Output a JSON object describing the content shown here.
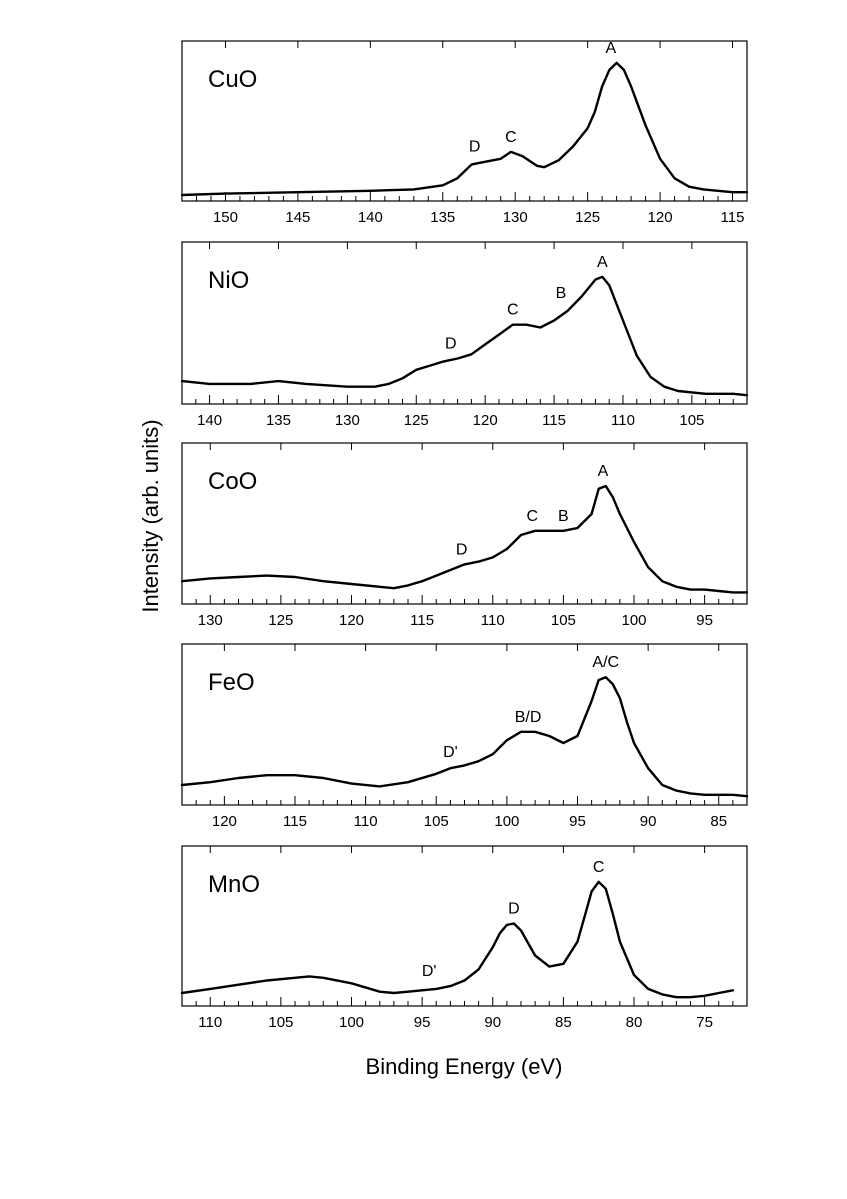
{
  "figure": {
    "xlabel": "Binding Energy (eV)",
    "ylabel": "Intensity (arb. units)"
  },
  "chart_data": [
    {
      "type": "line",
      "name": "CuO",
      "xlim": [
        153,
        114
      ],
      "xticks": [
        150,
        145,
        140,
        135,
        130,
        125,
        120,
        115
      ],
      "ylim": [
        0,
        1.05
      ],
      "x": [
        153,
        150,
        145,
        140,
        137,
        135,
        134,
        133,
        132,
        131,
        130.3,
        129.5,
        128.5,
        128,
        127,
        126,
        125,
        124.5,
        124,
        123.5,
        123,
        122.5,
        122,
        121,
        120,
        119,
        118,
        117,
        116,
        115,
        114
      ],
      "y": [
        0.0,
        0.01,
        0.02,
        0.03,
        0.04,
        0.07,
        0.12,
        0.22,
        0.24,
        0.26,
        0.31,
        0.28,
        0.21,
        0.2,
        0.25,
        0.35,
        0.48,
        0.6,
        0.78,
        0.9,
        0.95,
        0.9,
        0.78,
        0.5,
        0.26,
        0.12,
        0.06,
        0.04,
        0.03,
        0.02,
        0.02
      ],
      "peaks": [
        {
          "label": "D",
          "x": 132.8,
          "y": 0.24
        },
        {
          "label": "C",
          "x": 130.3,
          "y": 0.31
        },
        {
          "label": "A",
          "x": 123.4,
          "y": 0.95
        }
      ]
    },
    {
      "type": "line",
      "name": "NiO",
      "xlim": [
        142,
        101
      ],
      "xticks": [
        140,
        135,
        130,
        125,
        120,
        115,
        110,
        105
      ],
      "ylim": [
        0,
        1.05
      ],
      "x": [
        142,
        140,
        137,
        135,
        133,
        130,
        128,
        127,
        126,
        125,
        124,
        123,
        122,
        121,
        120,
        119,
        118,
        117,
        116,
        115,
        114,
        113,
        112,
        111.5,
        111,
        110,
        109,
        108,
        107,
        106,
        105,
        104,
        103,
        102,
        101
      ],
      "y": [
        0.12,
        0.1,
        0.1,
        0.12,
        0.1,
        0.08,
        0.08,
        0.1,
        0.14,
        0.2,
        0.23,
        0.26,
        0.28,
        0.31,
        0.38,
        0.45,
        0.52,
        0.52,
        0.5,
        0.55,
        0.62,
        0.72,
        0.84,
        0.86,
        0.8,
        0.55,
        0.3,
        0.15,
        0.08,
        0.05,
        0.04,
        0.03,
        0.03,
        0.03,
        0.02
      ],
      "peaks": [
        {
          "label": "D",
          "x": 122.5,
          "y": 0.28
        },
        {
          "label": "C",
          "x": 118,
          "y": 0.52
        },
        {
          "label": "B",
          "x": 114.5,
          "y": 0.64
        },
        {
          "label": "A",
          "x": 111.5,
          "y": 0.86
        }
      ]
    },
    {
      "type": "line",
      "name": "CoO",
      "xlim": [
        132,
        92
      ],
      "xticks": [
        130,
        125,
        120,
        115,
        110,
        105,
        100,
        95
      ],
      "ylim": [
        0,
        1.05
      ],
      "x": [
        132,
        130,
        128,
        126,
        124,
        122,
        120,
        118,
        117,
        116,
        115,
        114,
        113,
        112,
        111,
        110,
        109,
        108,
        107,
        106,
        105,
        104,
        103,
        102.5,
        102,
        101.5,
        101,
        100,
        99,
        98,
        97,
        96,
        95,
        94,
        93,
        92
      ],
      "y": [
        0.12,
        0.14,
        0.15,
        0.16,
        0.15,
        0.12,
        0.1,
        0.08,
        0.07,
        0.09,
        0.12,
        0.16,
        0.2,
        0.24,
        0.26,
        0.29,
        0.35,
        0.45,
        0.48,
        0.48,
        0.48,
        0.5,
        0.6,
        0.78,
        0.8,
        0.72,
        0.6,
        0.4,
        0.22,
        0.12,
        0.08,
        0.06,
        0.06,
        0.05,
        0.04,
        0.04
      ],
      "peaks": [
        {
          "label": "D",
          "x": 112.2,
          "y": 0.24
        },
        {
          "label": "C",
          "x": 107.2,
          "y": 0.48
        },
        {
          "label": "B",
          "x": 105,
          "y": 0.48
        },
        {
          "label": "A",
          "x": 102.2,
          "y": 0.8
        }
      ]
    },
    {
      "type": "line",
      "name": "FeO",
      "xlim": [
        123,
        83
      ],
      "xticks": [
        120,
        115,
        110,
        105,
        100,
        95,
        90,
        85
      ],
      "ylim": [
        0,
        1.05
      ],
      "x": [
        123,
        121,
        119,
        117,
        115,
        113,
        111,
        109,
        107,
        105,
        104,
        103,
        102,
        101,
        100,
        99,
        98,
        97,
        96,
        95,
        94,
        93.5,
        93,
        92.5,
        92,
        91.5,
        91,
        90,
        89,
        88,
        87,
        86,
        85,
        84,
        83
      ],
      "y": [
        0.1,
        0.12,
        0.15,
        0.17,
        0.17,
        0.15,
        0.11,
        0.09,
        0.12,
        0.18,
        0.22,
        0.24,
        0.27,
        0.32,
        0.42,
        0.48,
        0.48,
        0.45,
        0.4,
        0.45,
        0.7,
        0.85,
        0.87,
        0.82,
        0.72,
        0.55,
        0.4,
        0.22,
        0.1,
        0.06,
        0.04,
        0.03,
        0.03,
        0.03,
        0.02
      ],
      "peaks": [
        {
          "label": "D'",
          "x": 104,
          "y": 0.23
        },
        {
          "label": "B/D",
          "x": 98.5,
          "y": 0.48
        },
        {
          "label": "A/C",
          "x": 93,
          "y": 0.87
        }
      ]
    },
    {
      "type": "line",
      "name": "MnO",
      "xlim": [
        112,
        72
      ],
      "xticks": [
        110,
        105,
        100,
        95,
        90,
        85,
        80,
        75
      ],
      "ylim": [
        0,
        1.05
      ],
      "x": [
        112,
        110,
        108,
        106,
        104,
        103,
        102,
        100,
        98,
        97,
        96,
        95,
        94,
        93,
        92,
        91,
        90,
        89.5,
        89,
        88.5,
        88,
        87,
        86,
        85,
        84,
        83.5,
        83,
        82.5,
        82,
        81.5,
        81,
        80,
        79,
        78,
        77,
        76,
        75,
        74,
        73
      ],
      "y": [
        0.05,
        0.08,
        0.11,
        0.14,
        0.16,
        0.17,
        0.16,
        0.12,
        0.06,
        0.05,
        0.06,
        0.07,
        0.08,
        0.1,
        0.14,
        0.22,
        0.38,
        0.48,
        0.54,
        0.55,
        0.5,
        0.32,
        0.24,
        0.26,
        0.42,
        0.6,
        0.78,
        0.85,
        0.8,
        0.62,
        0.42,
        0.18,
        0.08,
        0.04,
        0.02,
        0.02,
        0.03,
        0.05,
        0.07
      ],
      "peaks": [
        {
          "label": "D'",
          "x": 94.5,
          "y": 0.1
        },
        {
          "label": "D",
          "x": 88.5,
          "y": 0.55
        },
        {
          "label": "C",
          "x": 82.5,
          "y": 0.85
        }
      ]
    }
  ]
}
